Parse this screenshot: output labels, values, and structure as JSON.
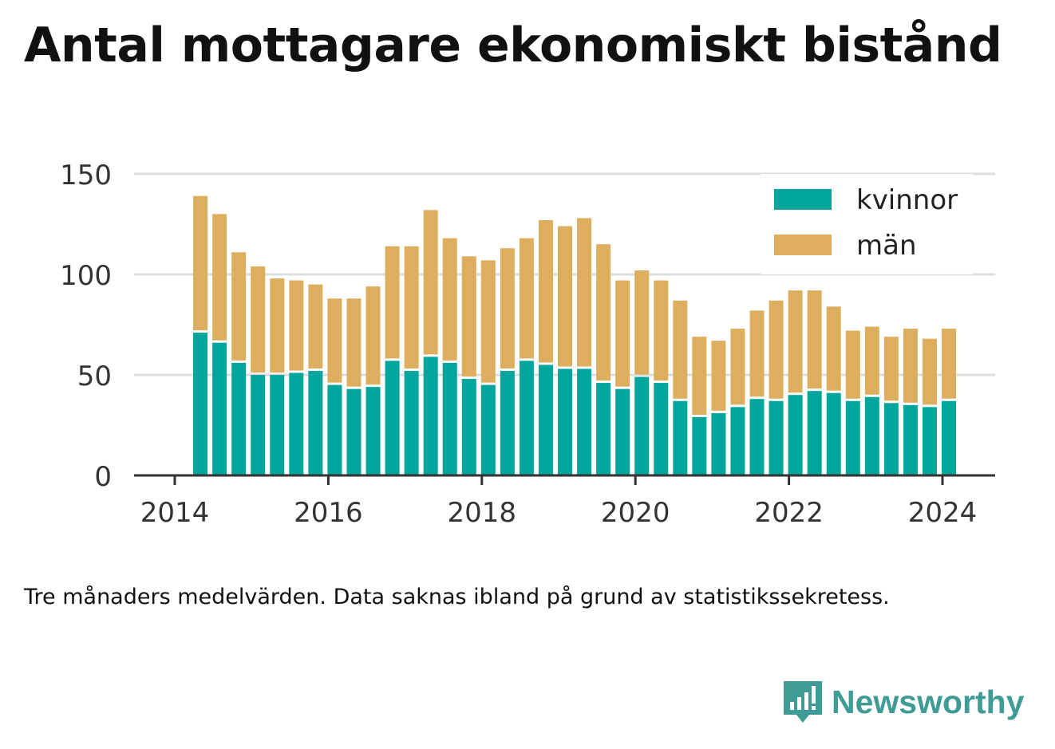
{
  "title": "Antal mottagare ekonomiskt bistånd",
  "caption": "Tre månaders medelvärden. Data saknas ibland på grund av statistikssekretess.",
  "brand": {
    "name": "Newsworthy",
    "color": "#3f9b96"
  },
  "colors": {
    "kvinnor": "#00a59b",
    "man": "#dcae5d",
    "grid": "#dddddd",
    "axis": "#333333",
    "text": "#333333"
  },
  "chart_data": {
    "type": "bar",
    "stacked": true,
    "x": [
      "2014-05",
      "2014-08",
      "2014-11",
      "2015-02",
      "2015-05",
      "2015-08",
      "2015-11",
      "2016-02",
      "2016-05",
      "2016-08",
      "2016-11",
      "2017-02",
      "2017-05",
      "2017-08",
      "2017-11",
      "2018-02",
      "2018-05",
      "2018-08",
      "2018-11",
      "2019-02",
      "2019-05",
      "2019-08",
      "2019-11",
      "2020-02",
      "2020-05",
      "2020-08",
      "2020-11",
      "2021-02",
      "2021-05",
      "2021-08",
      "2021-11",
      "2022-02",
      "2022-05",
      "2022-08",
      "2022-11",
      "2023-02",
      "2023-05",
      "2023-08",
      "2023-11",
      "2024-02"
    ],
    "series": [
      {
        "name": "kvinnor",
        "values": [
          71,
          66,
          56,
          50,
          50,
          51,
          52,
          45,
          43,
          44,
          57,
          52,
          59,
          56,
          48,
          45,
          52,
          57,
          55,
          53,
          53,
          46,
          43,
          49,
          46,
          37,
          29,
          31,
          34,
          38,
          37,
          40,
          42,
          41,
          37,
          39,
          36,
          35,
          34,
          37
        ]
      },
      {
        "name": "män",
        "values": [
          68,
          64,
          55,
          54,
          48,
          46,
          43,
          43,
          45,
          50,
          57,
          62,
          73,
          62,
          61,
          62,
          61,
          61,
          72,
          71,
          75,
          69,
          54,
          53,
          51,
          50,
          40,
          36,
          39,
          44,
          50,
          52,
          50,
          43,
          35,
          35,
          33,
          38,
          34,
          36
        ]
      }
    ],
    "xticks": [
      2014,
      2016,
      2018,
      2020,
      2022,
      2024
    ],
    "yticks": [
      0,
      50,
      100,
      150
    ],
    "ylim": [
      0,
      150
    ],
    "legend": {
      "placement": "top-right",
      "labels": [
        "kvinnor",
        "män"
      ]
    },
    "grid": true
  }
}
